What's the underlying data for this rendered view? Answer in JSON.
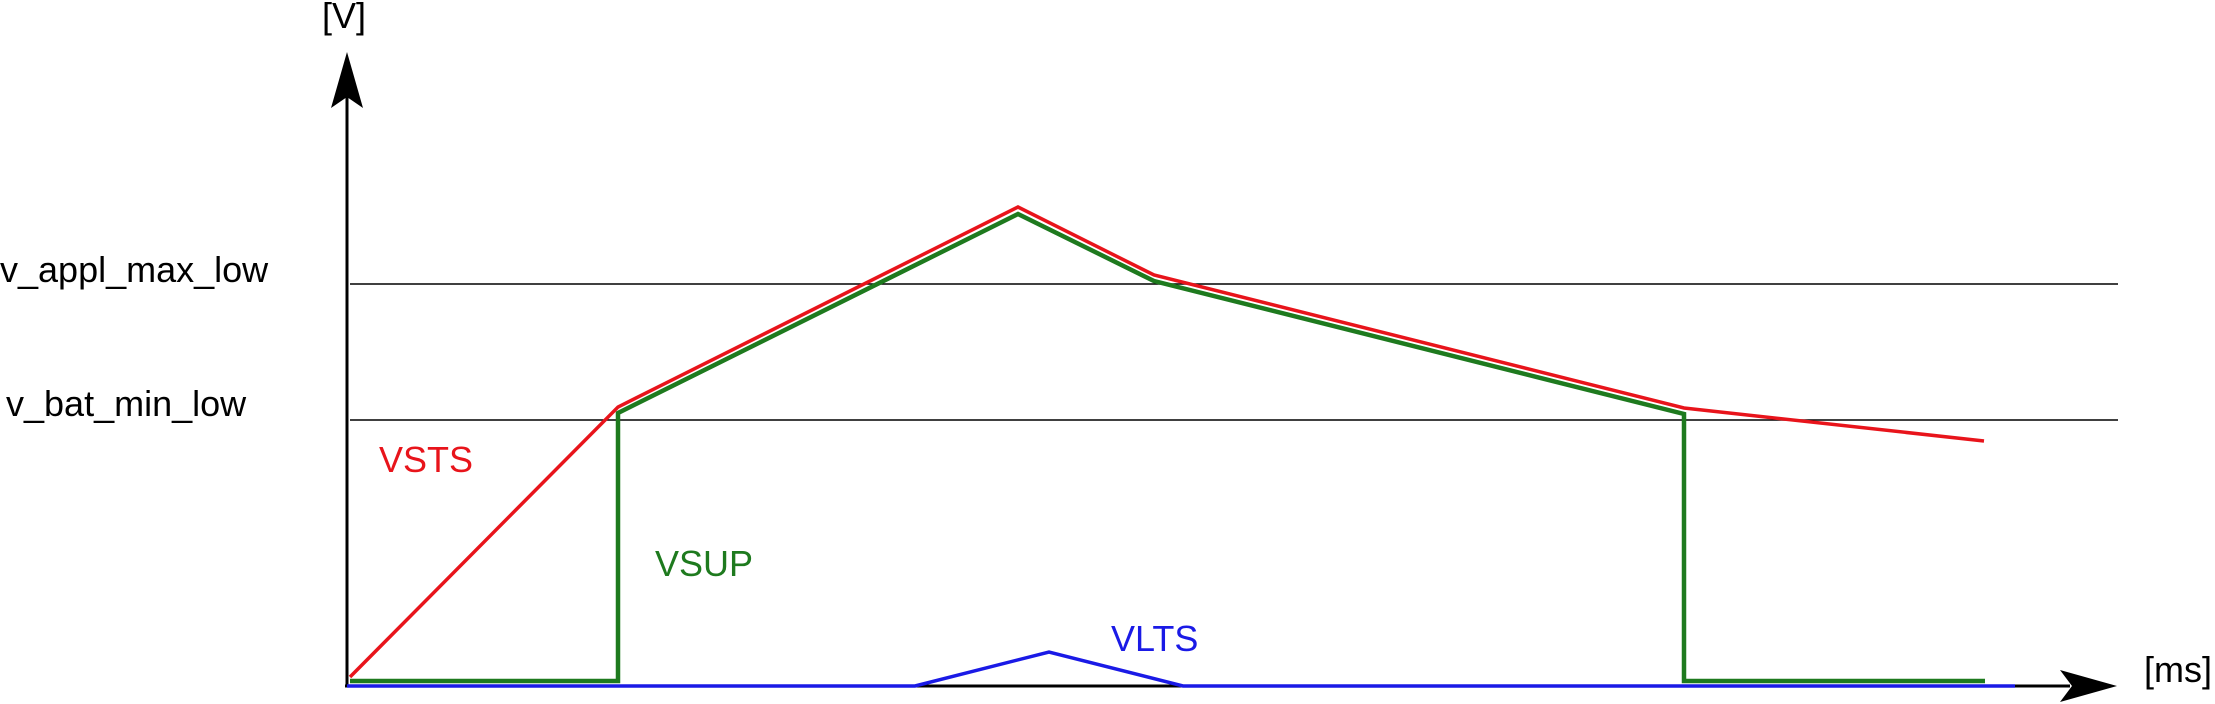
{
  "axes": {
    "y_unit": "[V]",
    "x_unit": "[ms]"
  },
  "thresholds": [
    {
      "label": "v_appl_max_low"
    },
    {
      "label": "v_bat_min_low"
    }
  ],
  "curves": [
    {
      "label": "VSTS",
      "color": "#e8141b"
    },
    {
      "label": "VSUP",
      "color": "#1e7a1e"
    },
    {
      "label": "VLTS",
      "color": "#1a1ae6"
    }
  ]
}
